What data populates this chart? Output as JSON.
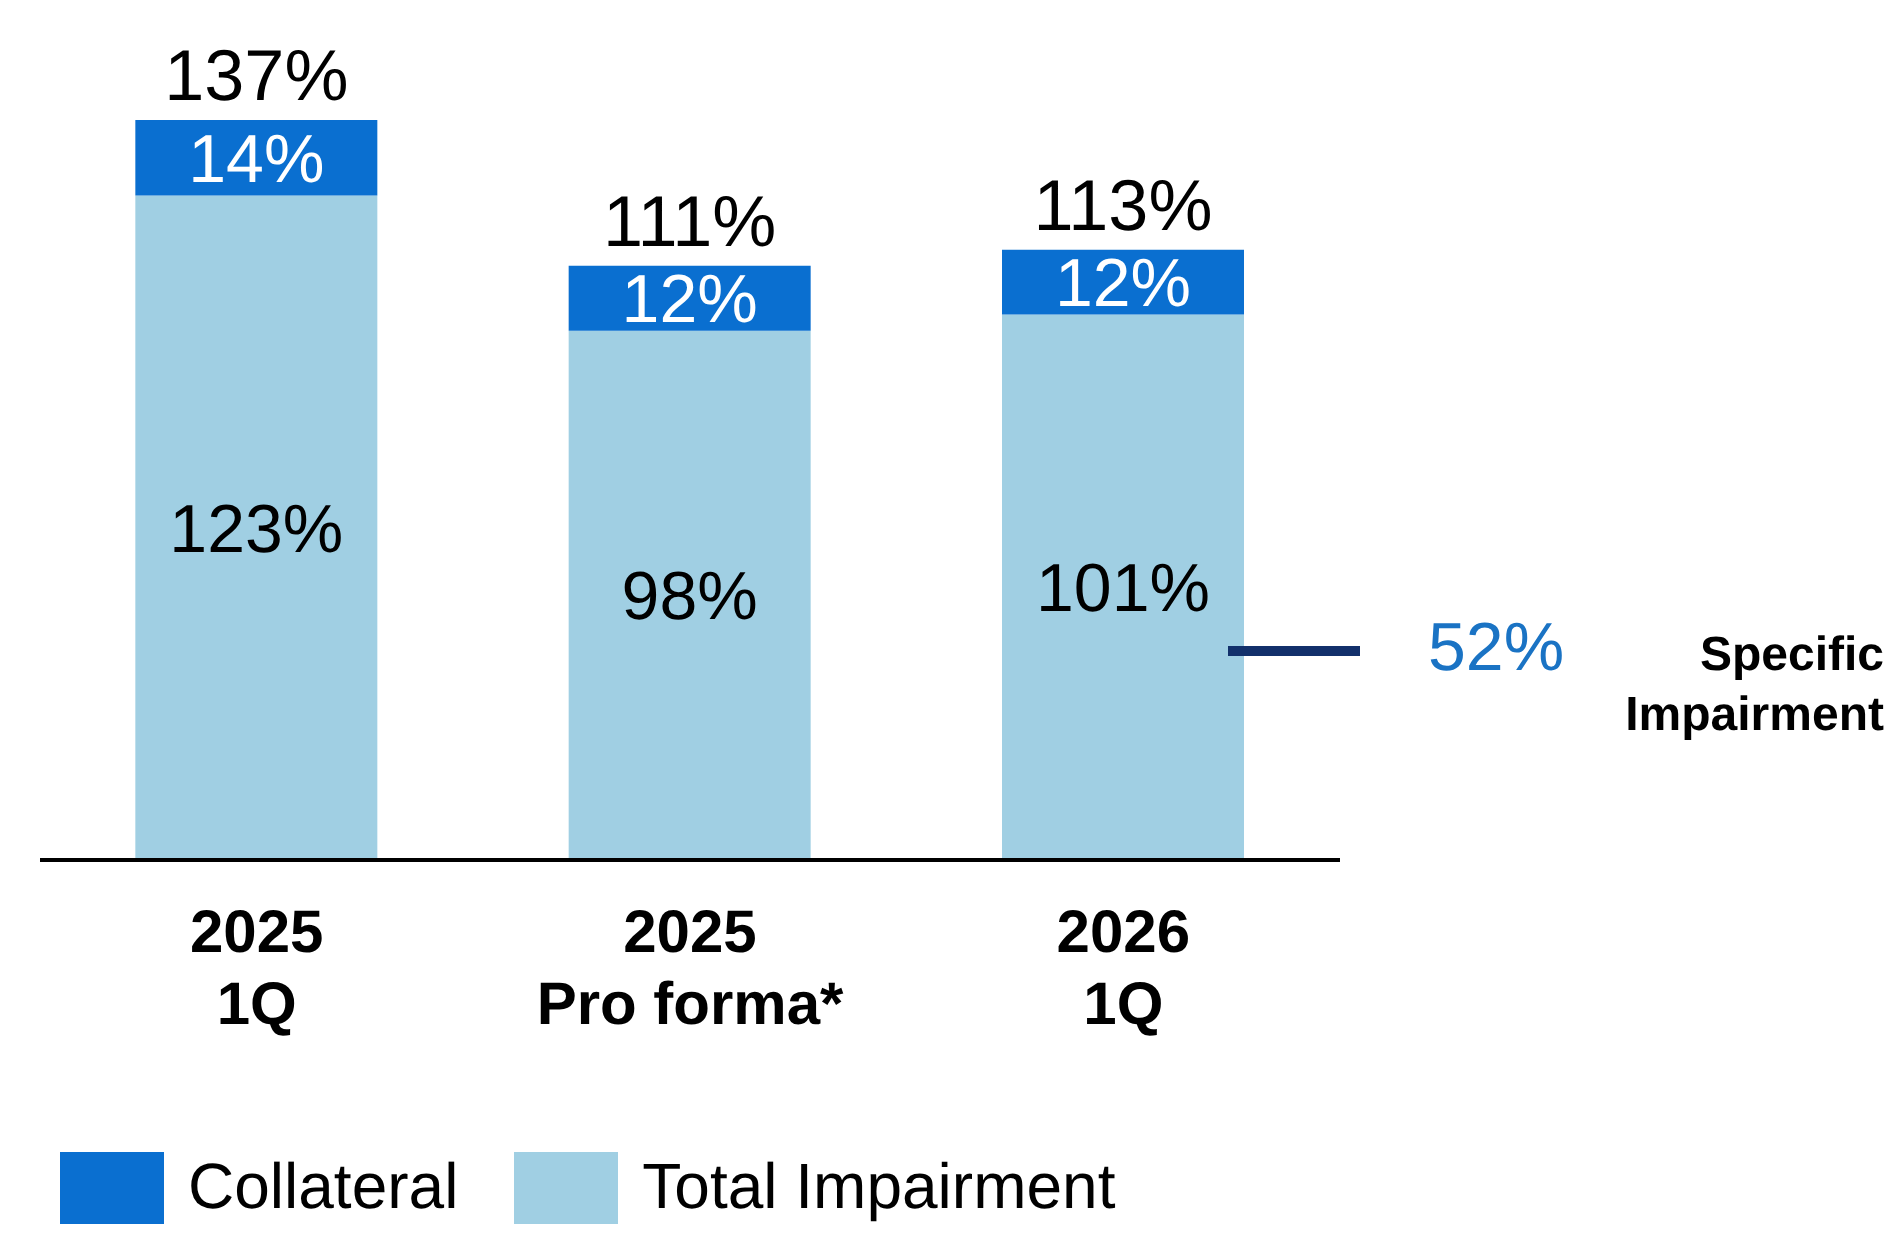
{
  "chart_data": {
    "type": "bar",
    "stacked": true,
    "categories": [
      "2025\n1Q",
      "2025\nPro forma*",
      "2026\n1Q"
    ],
    "series": [
      {
        "name": "Total Impairment",
        "color": "#a0cfe3",
        "values": [
          123,
          98,
          101
        ],
        "value_labels": [
          "123%",
          "98%",
          "101%"
        ]
      },
      {
        "name": "Collateral",
        "color": "#0a6fd0",
        "values": [
          14,
          12,
          12
        ],
        "value_labels": [
          "14%",
          "12%",
          "12%"
        ]
      }
    ],
    "totals": [
      "137%",
      "111%",
      "113%"
    ],
    "annotations": [
      "52%",
      "Specific Impairment"
    ],
    "legend": "bottom left"
  }
}
